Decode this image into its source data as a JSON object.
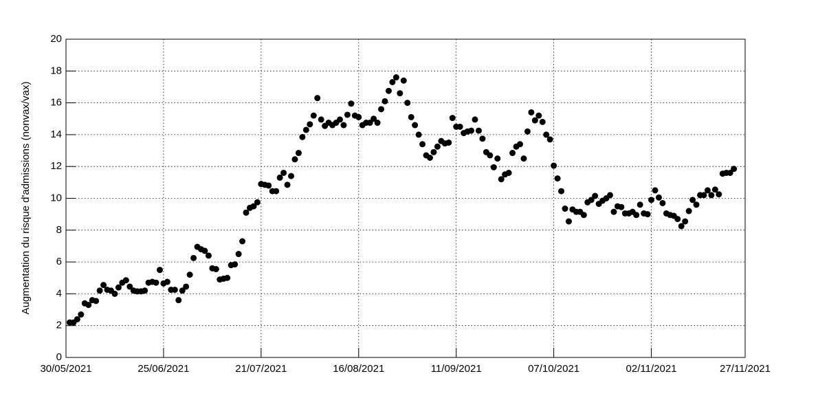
{
  "chart_data": {
    "type": "scatter",
    "y_label": "Augmentation du risque d'admissions (nonvax/vax)",
    "color": "#000000",
    "grid": true,
    "xlim": [
      "30/05/2021",
      "27/11/2021"
    ],
    "xticks": [
      "30/05/2021",
      "25/06/2021",
      "21/07/2021",
      "16/08/2021",
      "11/09/2021",
      "07/10/2021",
      "02/11/2021",
      "27/11/2021"
    ],
    "ylim": [
      0,
      20
    ],
    "yticks": [
      0,
      2,
      4,
      6,
      8,
      10,
      12,
      14,
      16,
      18,
      20
    ],
    "x": [
      "31/05/2021",
      "01/06/2021",
      "02/06/2021",
      "03/06/2021",
      "04/06/2021",
      "05/06/2021",
      "06/06/2021",
      "07/06/2021",
      "08/06/2021",
      "09/06/2021",
      "10/06/2021",
      "11/06/2021",
      "12/06/2021",
      "13/06/2021",
      "14/06/2021",
      "15/06/2021",
      "16/06/2021",
      "17/06/2021",
      "18/06/2021",
      "19/06/2021",
      "20/06/2021",
      "21/06/2021",
      "22/06/2021",
      "23/06/2021",
      "24/06/2021",
      "25/06/2021",
      "26/06/2021",
      "27/06/2021",
      "28/06/2021",
      "29/06/2021",
      "30/06/2021",
      "01/07/2021",
      "02/07/2021",
      "03/07/2021",
      "04/07/2021",
      "05/07/2021",
      "06/07/2021",
      "07/07/2021",
      "08/07/2021",
      "09/07/2021",
      "10/07/2021",
      "11/07/2021",
      "12/07/2021",
      "13/07/2021",
      "14/07/2021",
      "15/07/2021",
      "16/07/2021",
      "17/07/2021",
      "18/07/2021",
      "19/07/2021",
      "20/07/2021",
      "21/07/2021",
      "22/07/2021",
      "23/07/2021",
      "24/07/2021",
      "25/07/2021",
      "26/07/2021",
      "27/07/2021",
      "28/07/2021",
      "29/07/2021",
      "30/07/2021",
      "31/07/2021",
      "01/08/2021",
      "02/08/2021",
      "03/08/2021",
      "04/08/2021",
      "05/08/2021",
      "06/08/2021",
      "07/08/2021",
      "08/08/2021",
      "09/08/2021",
      "10/08/2021",
      "11/08/2021",
      "12/08/2021",
      "13/08/2021",
      "14/08/2021",
      "15/08/2021",
      "16/08/2021",
      "17/08/2021",
      "18/08/2021",
      "19/08/2021",
      "20/08/2021",
      "21/08/2021",
      "22/08/2021",
      "23/08/2021",
      "24/08/2021",
      "25/08/2021",
      "26/08/2021",
      "27/08/2021",
      "28/08/2021",
      "29/08/2021",
      "30/08/2021",
      "31/08/2021",
      "01/09/2021",
      "02/09/2021",
      "03/09/2021",
      "04/09/2021",
      "05/09/2021",
      "06/09/2021",
      "07/09/2021",
      "08/09/2021",
      "09/09/2021",
      "10/09/2021",
      "11/09/2021",
      "12/09/2021",
      "13/09/2021",
      "14/09/2021",
      "15/09/2021",
      "16/09/2021",
      "17/09/2021",
      "18/09/2021",
      "19/09/2021",
      "20/09/2021",
      "21/09/2021",
      "22/09/2021",
      "23/09/2021",
      "24/09/2021",
      "25/09/2021",
      "26/09/2021",
      "27/09/2021",
      "28/09/2021",
      "29/09/2021",
      "30/09/2021",
      "01/10/2021",
      "02/10/2021",
      "03/10/2021",
      "04/10/2021",
      "05/10/2021",
      "06/10/2021",
      "07/10/2021",
      "08/10/2021",
      "09/10/2021",
      "10/10/2021",
      "11/10/2021",
      "12/10/2021",
      "13/10/2021",
      "14/10/2021",
      "15/10/2021",
      "16/10/2021",
      "17/10/2021",
      "18/10/2021",
      "19/10/2021",
      "20/10/2021",
      "21/10/2021",
      "22/10/2021",
      "23/10/2021",
      "24/10/2021",
      "25/10/2021",
      "26/10/2021",
      "27/10/2021",
      "28/10/2021",
      "29/10/2021",
      "30/10/2021",
      "31/10/2021",
      "01/11/2021",
      "02/11/2021",
      "03/11/2021",
      "04/11/2021",
      "05/11/2021",
      "06/11/2021",
      "07/11/2021",
      "08/11/2021",
      "09/11/2021",
      "10/11/2021",
      "11/11/2021",
      "12/11/2021",
      "13/11/2021",
      "14/11/2021",
      "15/11/2021",
      "16/11/2021",
      "17/11/2021",
      "18/11/2021",
      "19/11/2021",
      "20/11/2021",
      "21/11/2021",
      "22/11/2021",
      "23/11/2021",
      "24/11/2021"
    ],
    "values": [
      2.2,
      2.2,
      2.4,
      2.7,
      3.4,
      3.3,
      3.6,
      3.55,
      4.2,
      4.55,
      4.25,
      4.2,
      4.0,
      4.4,
      4.7,
      4.85,
      4.45,
      4.2,
      4.15,
      4.15,
      4.2,
      4.7,
      4.75,
      4.7,
      5.5,
      4.65,
      4.75,
      4.25,
      4.25,
      3.6,
      4.2,
      4.45,
      5.2,
      6.25,
      6.95,
      6.8,
      6.7,
      6.4,
      5.6,
      5.55,
      4.9,
      4.95,
      5.0,
      5.8,
      5.85,
      6.5,
      7.3,
      9.1,
      9.4,
      9.5,
      9.75,
      10.9,
      10.85,
      10.8,
      10.45,
      10.45,
      11.3,
      11.6,
      10.85,
      11.4,
      12.45,
      12.85,
      13.85,
      14.3,
      14.65,
      15.2,
      16.3,
      14.95,
      14.55,
      14.75,
      14.6,
      14.75,
      14.95,
      14.6,
      15.25,
      15.95,
      15.2,
      15.1,
      14.6,
      14.75,
      14.75,
      15.0,
      14.75,
      15.6,
      16.1,
      16.75,
      17.3,
      17.6,
      16.6,
      17.4,
      16.0,
      15.1,
      14.6,
      14.0,
      13.4,
      12.7,
      12.55,
      12.9,
      13.25,
      13.6,
      13.45,
      13.5,
      15.05,
      14.5,
      14.5,
      14.1,
      14.2,
      14.25,
      14.95,
      14.25,
      13.75,
      12.9,
      12.7,
      11.95,
      12.5,
      11.2,
      11.5,
      11.6,
      12.85,
      13.25,
      13.4,
      12.5,
      14.2,
      15.4,
      14.9,
      15.2,
      14.8,
      14.0,
      13.7,
      12.05,
      11.25,
      10.45,
      9.35,
      8.55,
      9.3,
      9.15,
      9.15,
      8.95,
      9.75,
      9.9,
      10.15,
      9.65,
      9.85,
      10.0,
      10.2,
      9.15,
      9.5,
      9.45,
      9.05,
      9.05,
      9.15,
      8.95,
      9.6,
      9.05,
      9.0,
      9.9,
      10.5,
      10.05,
      9.7,
      9.05,
      8.95,
      8.9,
      8.7,
      8.25,
      8.55,
      9.2,
      9.9,
      9.6,
      10.2,
      10.2,
      10.5,
      10.2,
      10.55,
      10.25,
      11.55,
      11.6,
      11.6,
      11.85
    ]
  }
}
